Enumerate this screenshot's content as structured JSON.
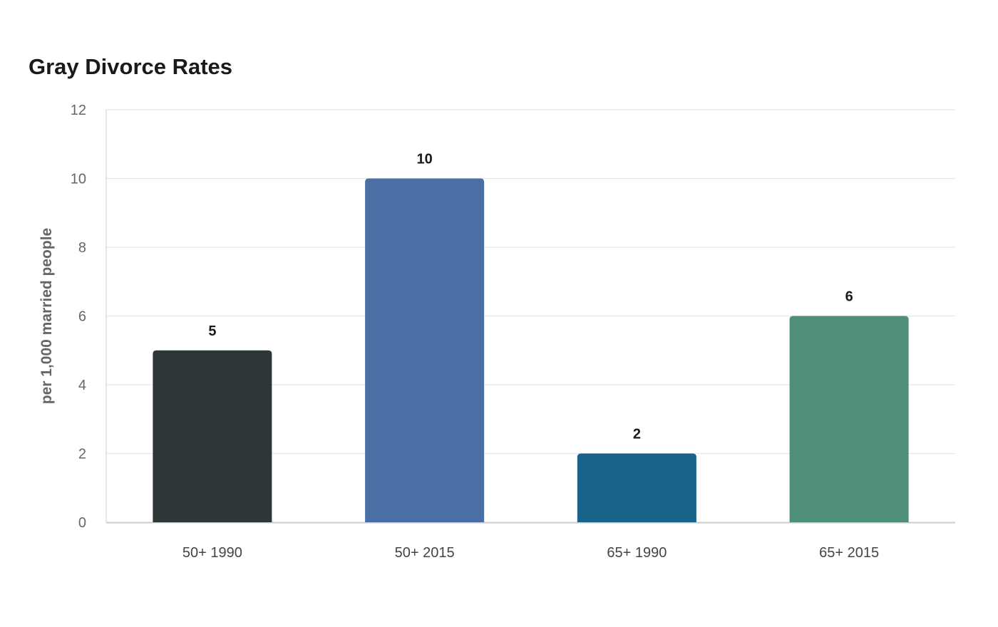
{
  "chart_data": {
    "type": "bar",
    "title": "Gray Divorce Rates",
    "xlabel": "",
    "ylabel": "per 1,000 married people",
    "categories": [
      "50+ 1990",
      "50+ 2015",
      "65+ 1990",
      "65+ 2015"
    ],
    "values": [
      5,
      10,
      2,
      6
    ],
    "colors": [
      "#2e3738",
      "#4a6fa5",
      "#186389",
      "#4f8e7b"
    ],
    "ylim": [
      0,
      12
    ],
    "yticks": [
      0,
      2,
      4,
      6,
      8,
      10,
      12
    ],
    "grid": true,
    "legend": "none",
    "data_labels": true
  }
}
